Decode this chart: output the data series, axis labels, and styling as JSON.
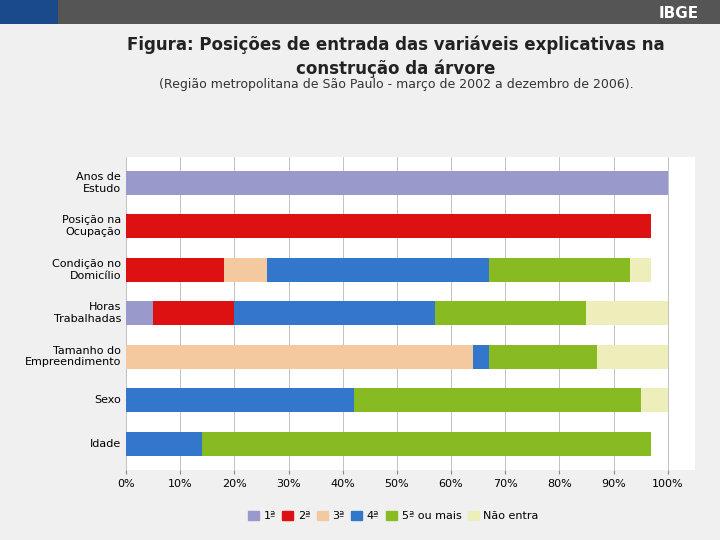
{
  "title": "Figura: Posições de entrada das variáveis explicativas na\nconstrução da árvore",
  "subtitle": "(Região metropolitana de São Paulo - março de 2002 a dezembro de 2006).",
  "categories": [
    "Anos de\nEstudo",
    "Posição na\nOcupação",
    "Condição no\nDomicílio",
    "Horas\nTrabalhadas",
    "Tamanho do\nEmpreendimento",
    "Sexo",
    "Idade"
  ],
  "series_labels": [
    "1ª",
    "2ª",
    "3ª",
    "4ª",
    "5ª ou mais",
    "Não entra"
  ],
  "colors": [
    "#9999cc",
    "#dd1111",
    "#f5c9a0",
    "#3377cc",
    "#88bb22",
    "#eeeebb"
  ],
  "data": [
    [
      100,
      0,
      0,
      0,
      0,
      0
    ],
    [
      0,
      97,
      0,
      0,
      0,
      0
    ],
    [
      0,
      18,
      8,
      41,
      26,
      4
    ],
    [
      5,
      15,
      0,
      37,
      28,
      15
    ],
    [
      0,
      0,
      64,
      3,
      20,
      13
    ],
    [
      0,
      0,
      0,
      42,
      53,
      5
    ],
    [
      0,
      0,
      0,
      14,
      83,
      0
    ]
  ],
  "background_color": "#f0f0f0",
  "plot_bg_color": "#ffffff",
  "title_fontsize": 12,
  "subtitle_fontsize": 9,
  "label_fontsize": 8,
  "legend_fontsize": 8,
  "tick_fontsize": 8,
  "ibge_bar_color": "#336699",
  "top_bar_color": "#666666"
}
